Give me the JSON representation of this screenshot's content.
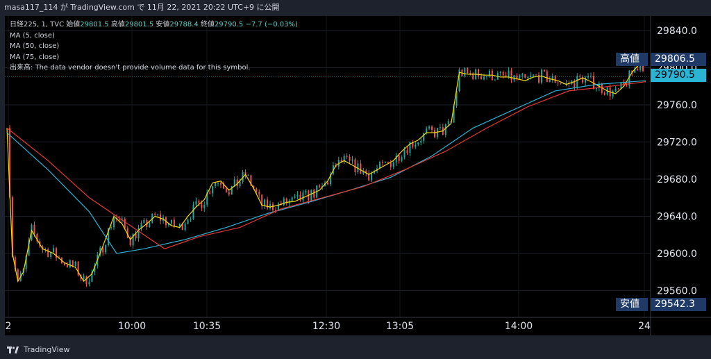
{
  "header": {
    "text": "masa117_114 が TradingView.com で 11月 22, 2021 20:22 UTC+9 に公開"
  },
  "legend": {
    "symbol": "日経225, 1, TVC",
    "open_label": "始値",
    "open": "29801.5",
    "high_label": "高値",
    "high": "29801.5",
    "low_label": "安値",
    "low": "29788.4",
    "close_label": "終値",
    "close": "29790.5",
    "change": "−7.7 (−0.03%)",
    "ma1": "MA (5, close)",
    "ma2": "MA (50, close)",
    "ma3": "MA (75, close)",
    "volume_label": "出来高:",
    "volume_note": "The data vendor doesn't provide volume data for this symbol."
  },
  "tags": {
    "high_label": "高値",
    "high_value": "29806.5",
    "last_value": "29790.5",
    "low_label": "安値",
    "low_value": "29542.3"
  },
  "footer": {
    "brand": "TradingView"
  },
  "colors": {
    "up": "#26a69a",
    "down": "#ef5350",
    "ma5": "#f5d90a",
    "ma50": "#2bb3d3",
    "ma75": "#e53935",
    "tag_bg": "#1f3a66",
    "last_bg": "#2bb3d3"
  },
  "chart_data": {
    "type": "line",
    "y_ticks": [
      29840,
      29800,
      29760,
      29720,
      29680,
      29640,
      29600,
      29560
    ],
    "x_ticks": [
      "2",
      "10:00",
      "10:35",
      "12:30",
      "13:05",
      "14:00",
      "24"
    ],
    "ylim": [
      29535,
      29852
    ],
    "series": [
      {
        "name": "MA (5, close)",
        "values": [
          [
            0,
            29735
          ],
          [
            4,
            29600
          ],
          [
            8,
            29570
          ],
          [
            12,
            29580
          ],
          [
            18,
            29625
          ],
          [
            26,
            29605
          ],
          [
            34,
            29600
          ],
          [
            42,
            29590
          ],
          [
            50,
            29585
          ],
          [
            56,
            29570
          ],
          [
            62,
            29578
          ],
          [
            70,
            29608
          ],
          [
            78,
            29640
          ],
          [
            84,
            29632
          ],
          [
            90,
            29615
          ],
          [
            96,
            29625
          ],
          [
            102,
            29632
          ],
          [
            108,
            29640
          ],
          [
            114,
            29637
          ],
          [
            120,
            29630
          ],
          [
            126,
            29628
          ],
          [
            132,
            29640
          ],
          [
            138,
            29650
          ],
          [
            144,
            29658
          ],
          [
            150,
            29676
          ],
          [
            156,
            29678
          ],
          [
            162,
            29668
          ],
          [
            168,
            29675
          ],
          [
            174,
            29685
          ],
          [
            180,
            29670
          ],
          [
            186,
            29652
          ],
          [
            192,
            29650
          ],
          [
            198,
            29652
          ],
          [
            204,
            29655
          ],
          [
            210,
            29656
          ],
          [
            216,
            29660
          ],
          [
            222,
            29664
          ],
          [
            228,
            29668
          ],
          [
            234,
            29678
          ],
          [
            240,
            29695
          ],
          [
            246,
            29700
          ],
          [
            252,
            29695
          ],
          [
            258,
            29690
          ],
          [
            264,
            29685
          ],
          [
            270,
            29690
          ],
          [
            276,
            29695
          ],
          [
            282,
            29700
          ],
          [
            288,
            29710
          ],
          [
            294,
            29718
          ],
          [
            300,
            29722
          ],
          [
            306,
            29730
          ],
          [
            312,
            29730
          ],
          [
            318,
            29732
          ],
          [
            324,
            29740
          ],
          [
            330,
            29795
          ],
          [
            336,
            29793
          ],
          [
            342,
            29793
          ],
          [
            348,
            29792
          ],
          [
            354,
            29792
          ],
          [
            360,
            29790
          ],
          [
            366,
            29790
          ],
          [
            372,
            29788
          ],
          [
            378,
            29786
          ],
          [
            384,
            29790
          ],
          [
            390,
            29791
          ],
          [
            396,
            29788
          ],
          [
            402,
            29786
          ],
          [
            408,
            29782
          ],
          [
            414,
            29785
          ],
          [
            420,
            29789
          ],
          [
            426,
            29785
          ],
          [
            432,
            29780
          ],
          [
            438,
            29775
          ],
          [
            444,
            29772
          ],
          [
            450,
            29780
          ],
          [
            456,
            29795
          ],
          [
            462,
            29805
          ],
          [
            466,
            29802
          ]
        ]
      },
      {
        "name": "MA (50, close)",
        "values": [
          [
            0,
            29730
          ],
          [
            30,
            29690
          ],
          [
            60,
            29645
          ],
          [
            80,
            29600
          ],
          [
            100,
            29605
          ],
          [
            130,
            29615
          ],
          [
            160,
            29628
          ],
          [
            190,
            29643
          ],
          [
            220,
            29655
          ],
          [
            250,
            29668
          ],
          [
            280,
            29682
          ],
          [
            310,
            29705
          ],
          [
            340,
            29735
          ],
          [
            370,
            29755
          ],
          [
            400,
            29775
          ],
          [
            430,
            29782
          ],
          [
            466,
            29786
          ]
        ]
      },
      {
        "name": "MA (75, close)",
        "values": [
          [
            0,
            29735
          ],
          [
            30,
            29700
          ],
          [
            60,
            29660
          ],
          [
            90,
            29630
          ],
          [
            115,
            29605
          ],
          [
            140,
            29618
          ],
          [
            170,
            29628
          ],
          [
            200,
            29648
          ],
          [
            230,
            29660
          ],
          [
            260,
            29672
          ],
          [
            290,
            29690
          ],
          [
            320,
            29710
          ],
          [
            350,
            29735
          ],
          [
            380,
            29758
          ],
          [
            410,
            29775
          ],
          [
            440,
            29780
          ],
          [
            466,
            29785
          ]
        ]
      }
    ]
  }
}
